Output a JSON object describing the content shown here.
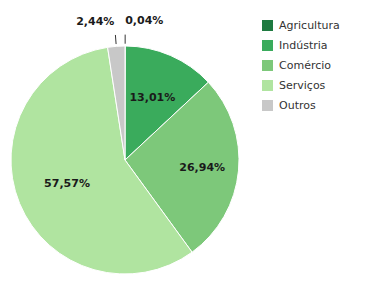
{
  "chart_data": {
    "type": "pie",
    "categories": [
      "Agricultura",
      "Indústria",
      "Comércio",
      "Serviços",
      "Outros"
    ],
    "values": [
      0.04,
      13.01,
      26.94,
      57.57,
      2.44
    ],
    "value_labels": [
      "0,04%",
      "13,01%",
      "26,94%",
      "57,57%",
      "2,44%"
    ],
    "colors": [
      "#1e7a40",
      "#3aab5c",
      "#7dc87a",
      "#b0e4a0",
      "#c8c8c8"
    ],
    "data_labels": true,
    "legend": "upper right"
  }
}
